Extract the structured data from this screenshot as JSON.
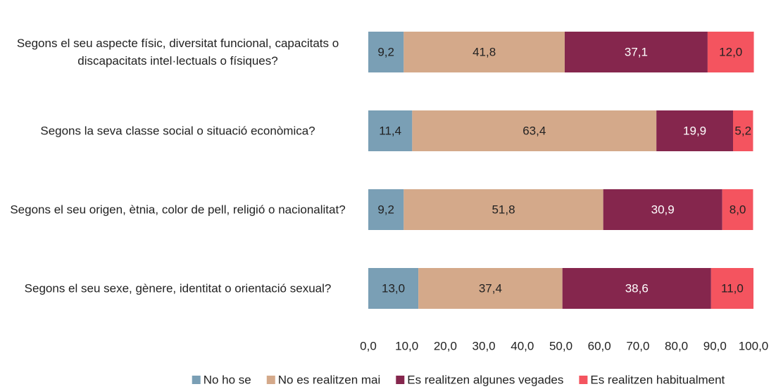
{
  "chart_data": {
    "type": "stacked-barh",
    "categories": [
      "Segons el seu aspecte físic, diversitat funcional, capacitats o discapacitats intel·lectuals o físiques?",
      "Segons la seva classe social o situació econòmica?",
      "Segons el seu origen, ètnia, color de pell, religió o nacionalitat?",
      "Segons el seu sexe, gènere, identitat o orientació sexual?"
    ],
    "series": [
      {
        "name": "No ho se",
        "color": "#7a9fb5",
        "values": [
          9.2,
          11.4,
          9.2,
          13.0
        ],
        "value_labels": [
          "9,2",
          "11,4",
          "9,2",
          "13,0"
        ]
      },
      {
        "name": "No es realitzen mai",
        "color": "#d4a98a",
        "values": [
          41.8,
          63.4,
          51.8,
          37.4
        ],
        "value_labels": [
          "41,8",
          "63,4",
          "51,8",
          "37,4"
        ]
      },
      {
        "name": "Es realitzen algunes vegades",
        "color": "#85264d",
        "values": [
          37.1,
          19.9,
          30.9,
          38.6
        ],
        "value_labels": [
          "37,1",
          "19,9",
          "30,9",
          "38,6"
        ]
      },
      {
        "name": "Es realitzen habitualment",
        "color": "#f4545f",
        "values": [
          12.0,
          5.2,
          8.0,
          11.0
        ],
        "value_labels": [
          "12,0",
          "5,2",
          "8,0",
          "11,0"
        ]
      }
    ],
    "xlim": [
      0,
      100
    ],
    "xticks": [
      {
        "value": 0,
        "label": "0,0"
      },
      {
        "value": 10,
        "label": "10,0"
      },
      {
        "value": 20,
        "label": "20,0"
      },
      {
        "value": 30,
        "label": "30,0"
      },
      {
        "value": 40,
        "label": "40,0"
      },
      {
        "value": 50,
        "label": "50,0"
      },
      {
        "value": 60,
        "label": "60,0"
      },
      {
        "value": 70,
        "label": "70,0"
      },
      {
        "value": 80,
        "label": "80,0"
      },
      {
        "value": 90,
        "label": "90,0"
      },
      {
        "value": 100,
        "label": "100,0"
      }
    ],
    "grid": false,
    "legend": "bottom"
  }
}
